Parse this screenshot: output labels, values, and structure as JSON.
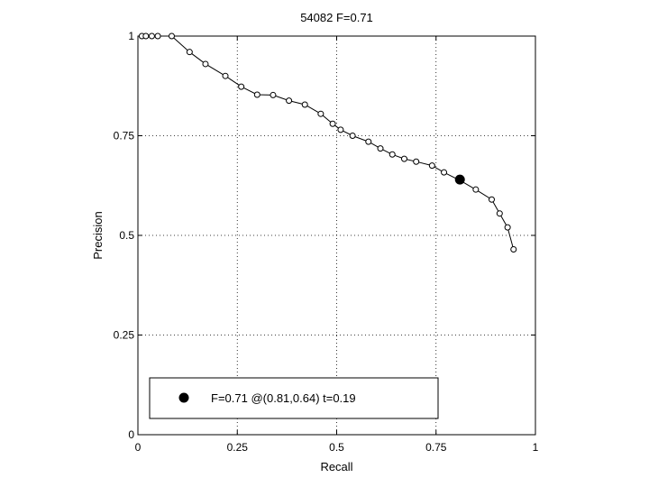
{
  "chart_data": {
    "type": "line",
    "title": "54082 F=0.71",
    "xlabel": "Recall",
    "ylabel": "Precision",
    "xlim": [
      0,
      1
    ],
    "ylim": [
      0,
      1
    ],
    "xticks": [
      "0",
      "0.25",
      "0.5",
      "0.75",
      "1"
    ],
    "yticks": [
      "0",
      "0.25",
      "0.5",
      "0.75",
      "1"
    ],
    "grid": true,
    "legend_position": "bottom",
    "series": [
      {
        "marker": "open-circle",
        "x": [
          0.01,
          0.02,
          0.035,
          0.05,
          0.085,
          0.13,
          0.17,
          0.22,
          0.26,
          0.3,
          0.34,
          0.38,
          0.42,
          0.46,
          0.49,
          0.51,
          0.54,
          0.58,
          0.61,
          0.64,
          0.67,
          0.7,
          0.74,
          0.77,
          0.81,
          0.85,
          0.89,
          0.91,
          0.93,
          0.945
        ],
        "y": [
          1.0,
          1.0,
          1.0,
          1.0,
          1.0,
          0.96,
          0.93,
          0.9,
          0.873,
          0.853,
          0.852,
          0.838,
          0.828,
          0.805,
          0.78,
          0.765,
          0.75,
          0.735,
          0.718,
          0.703,
          0.692,
          0.685,
          0.675,
          0.658,
          0.638,
          0.615,
          0.59,
          0.555,
          0.52,
          0.465
        ]
      }
    ],
    "best_point": {
      "x": 0.81,
      "y": 0.64
    },
    "legend_label": "F=0.71 @(0.81,0.64) t=0.19"
  }
}
